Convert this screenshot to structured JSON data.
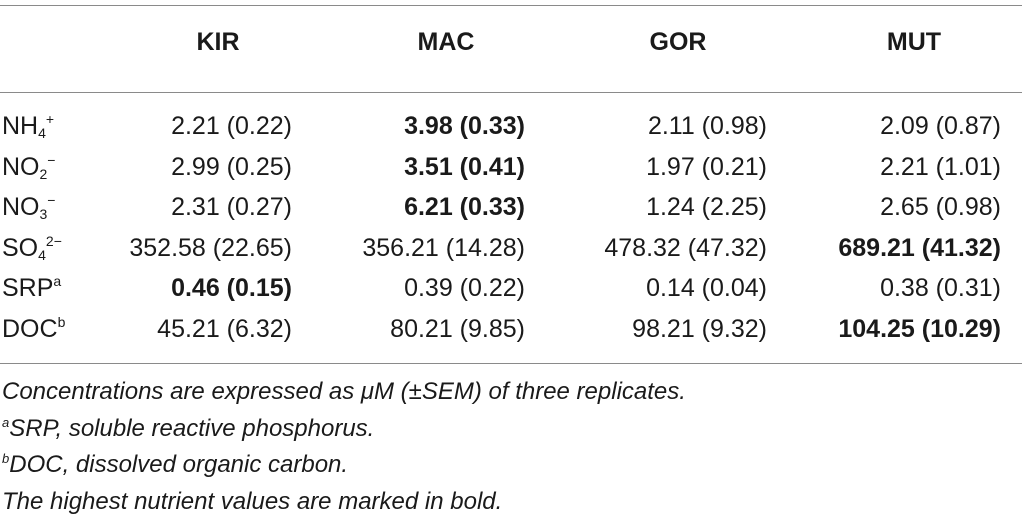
{
  "table": {
    "columns": [
      "KIR",
      "MAC",
      "GOR",
      "MUT"
    ],
    "rows": [
      {
        "label_base": "NH",
        "label_sub": "4",
        "label_sup": "+",
        "cells": [
          {
            "text": "2.21 (0.22)",
            "bold": false
          },
          {
            "text": "3.98 (0.33)",
            "bold": true
          },
          {
            "text": "2.11 (0.98)",
            "bold": false
          },
          {
            "text": "2.09 (0.87)",
            "bold": false
          }
        ]
      },
      {
        "label_base": "NO",
        "label_sub": "2",
        "label_sup": "−",
        "cells": [
          {
            "text": "2.99 (0.25)",
            "bold": false
          },
          {
            "text": "3.51 (0.41)",
            "bold": true
          },
          {
            "text": "1.97 (0.21)",
            "bold": false
          },
          {
            "text": "2.21 (1.01)",
            "bold": false
          }
        ]
      },
      {
        "label_base": "NO",
        "label_sub": "3",
        "label_sup": "−",
        "cells": [
          {
            "text": "2.31 (0.27)",
            "bold": false
          },
          {
            "text": "6.21 (0.33)",
            "bold": true
          },
          {
            "text": "1.24 (2.25)",
            "bold": false
          },
          {
            "text": "2.65 (0.98)",
            "bold": false
          }
        ]
      },
      {
        "label_base": "SO",
        "label_sub": "4",
        "label_sup": "2−",
        "cells": [
          {
            "text": "352.58 (22.65)",
            "bold": false
          },
          {
            "text": "356.21 (14.28)",
            "bold": false
          },
          {
            "text": "478.32 (47.32)",
            "bold": false
          },
          {
            "text": "689.21 (41.32)",
            "bold": true
          }
        ]
      },
      {
        "label_base": "SRP",
        "label_sub": "",
        "label_sup": "a",
        "cells": [
          {
            "text": "0.46 (0.15)",
            "bold": true
          },
          {
            "text": "0.39 (0.22)",
            "bold": false
          },
          {
            "text": "0.14 (0.04)",
            "bold": false
          },
          {
            "text": "0.38 (0.31)",
            "bold": false
          }
        ]
      },
      {
        "label_base": "DOC",
        "label_sub": "",
        "label_sup": "b",
        "cells": [
          {
            "text": "45.21 (6.32)",
            "bold": false
          },
          {
            "text": "80.21 (9.85)",
            "bold": false
          },
          {
            "text": "98.21 (9.32)",
            "bold": false
          },
          {
            "text": "104.25 (10.29)",
            "bold": true
          }
        ]
      }
    ]
  },
  "notes": {
    "line1": "Concentrations are expressed as μM (±SEM) of three replicates.",
    "line2_sup": "a",
    "line2": "SRP, soluble reactive phosphorus.",
    "line3_sup": "b",
    "line3": "DOC, dissolved organic carbon.",
    "line4": "The highest nutrient values are marked in bold."
  }
}
